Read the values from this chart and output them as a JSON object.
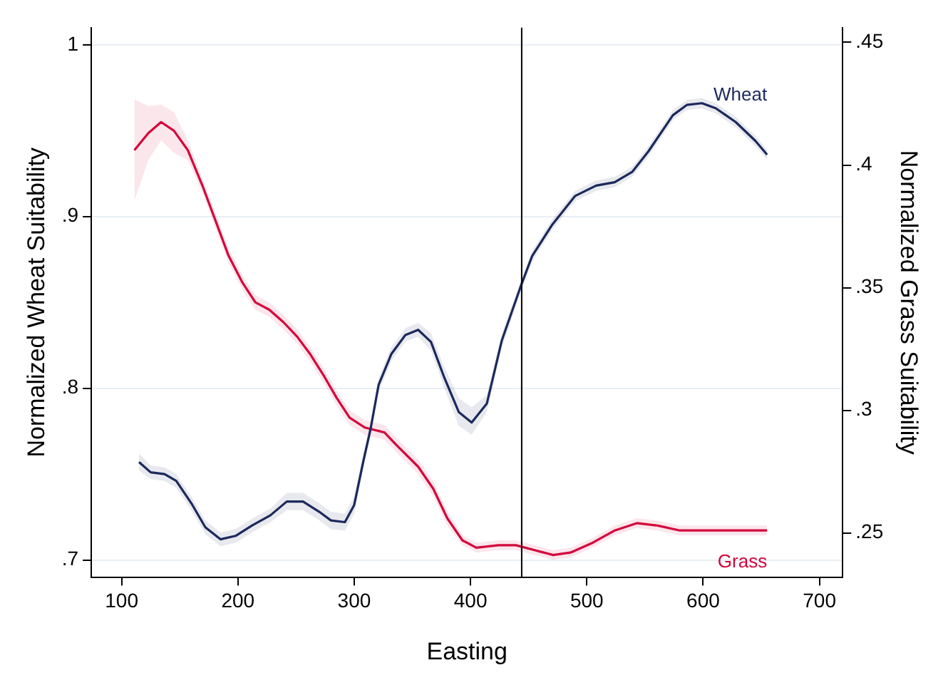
{
  "chart_data": {
    "type": "line",
    "xlabel": "Easting",
    "ylabel": "Normalized Wheat Suitability",
    "y2label": "Normalized Grass Suitability",
    "xlim": [
      74,
      720
    ],
    "xticks": [
      100,
      200,
      300,
      400,
      500,
      600,
      700
    ],
    "ylim": [
      0.69,
      1.01
    ],
    "yticks": [
      {
        "value": 0.7,
        "label": ".7"
      },
      {
        "value": 0.8,
        "label": ".8"
      },
      {
        "value": 0.9,
        "label": ".9"
      },
      1
    ],
    "y2lim": [
      0.232,
      0.456
    ],
    "y2ticks": [
      {
        "value": 0.25,
        "label": ".25"
      },
      {
        "value": 0.3,
        "label": ".3"
      },
      {
        "value": 0.35,
        "label": ".35"
      },
      {
        "value": 0.4,
        "label": ".4"
      },
      {
        "value": 0.45,
        "label": ".45"
      }
    ],
    "grid": "y",
    "legend": false,
    "marker": "none",
    "line_style": "solid",
    "ref_lines": [
      {
        "axis": "x",
        "value": 444,
        "color": "#000000"
      }
    ],
    "series": [
      {
        "name": "Wheat",
        "color": "#1b2a5c",
        "x": [
          115,
          125,
          137,
          147,
          160,
          172,
          185,
          198,
          212,
          228,
          242,
          256,
          270,
          280,
          292,
          300,
          308,
          314,
          321,
          332,
          344,
          355,
          366,
          377,
          390,
          401,
          414,
          427,
          443,
          453,
          470,
          490,
          508,
          524,
          539,
          553,
          574,
          586,
          599,
          611,
          628,
          645,
          655
        ],
        "values": [
          0.757,
          0.751,
          0.75,
          0.746,
          0.733,
          0.719,
          0.712,
          0.714,
          0.72,
          0.726,
          0.734,
          0.734,
          0.728,
          0.723,
          0.722,
          0.732,
          0.758,
          0.776,
          0.802,
          0.82,
          0.831,
          0.834,
          0.827,
          0.807,
          0.786,
          0.78,
          0.791,
          0.828,
          0.859,
          0.877,
          0.895,
          0.912,
          0.918,
          0.92,
          0.926,
          0.938,
          0.959,
          0.965,
          0.966,
          0.963,
          0.955,
          0.944,
          0.936
        ],
        "lower": [
          0.752,
          0.747,
          0.746,
          0.742,
          0.729,
          0.715,
          0.708,
          0.71,
          0.716,
          0.722,
          0.729,
          0.729,
          0.723,
          0.718,
          0.717,
          0.727,
          0.754,
          0.772,
          0.798,
          0.816,
          0.827,
          0.83,
          0.822,
          0.801,
          0.778,
          0.773,
          0.786,
          0.824,
          0.856,
          0.874,
          0.892,
          0.909,
          0.915,
          0.917,
          0.923,
          0.935,
          0.956,
          0.962,
          0.963,
          0.96,
          0.952,
          0.941,
          0.933
        ],
        "upper": [
          0.762,
          0.755,
          0.754,
          0.75,
          0.737,
          0.723,
          0.716,
          0.718,
          0.724,
          0.73,
          0.739,
          0.739,
          0.733,
          0.728,
          0.727,
          0.737,
          0.762,
          0.78,
          0.806,
          0.824,
          0.835,
          0.838,
          0.832,
          0.813,
          0.794,
          0.789,
          0.796,
          0.832,
          0.862,
          0.88,
          0.898,
          0.915,
          0.921,
          0.923,
          0.929,
          0.941,
          0.962,
          0.968,
          0.969,
          0.966,
          0.958,
          0.947,
          0.939
        ]
      },
      {
        "name": "Grass",
        "color": "#d4063d",
        "axis": "y2",
        "x": [
          111,
          123,
          134,
          145,
          157,
          170,
          181,
          192,
          204,
          215,
          227,
          239,
          251,
          262,
          274,
          285,
          296,
          309,
          326,
          336,
          355,
          368,
          380,
          393,
          405,
          424,
          439,
          455,
          471,
          486,
          505,
          524,
          543,
          561,
          580,
          599,
          618,
          636,
          655
        ],
        "values": [
          0.406,
          0.413,
          0.4175,
          0.414,
          0.406,
          0.391,
          0.377,
          0.363,
          0.352,
          0.344,
          0.341,
          0.336,
          0.33,
          0.323,
          0.314,
          0.305,
          0.297,
          0.293,
          0.291,
          0.286,
          0.277,
          0.268,
          0.256,
          0.247,
          0.244,
          0.245,
          0.245,
          0.243,
          0.241,
          0.242,
          0.246,
          0.251,
          0.254,
          0.253,
          0.251,
          0.251,
          0.251,
          0.251,
          0.251
        ],
        "lower": [
          0.3855,
          0.402,
          0.41,
          0.405,
          0.402,
          0.388,
          0.374,
          0.36,
          0.349,
          0.341,
          0.338,
          0.333,
          0.327,
          0.32,
          0.311,
          0.302,
          0.294,
          0.29,
          0.288,
          0.283,
          0.274,
          0.265,
          0.253,
          0.245,
          0.242,
          0.243,
          0.243,
          0.241,
          0.239,
          0.24,
          0.244,
          0.249,
          0.252,
          0.251,
          0.249,
          0.249,
          0.249,
          0.249,
          0.249
        ],
        "upper": [
          0.4268,
          0.424,
          0.4246,
          0.4215,
          0.41,
          0.394,
          0.38,
          0.366,
          0.355,
          0.347,
          0.344,
          0.339,
          0.333,
          0.326,
          0.317,
          0.308,
          0.3,
          0.296,
          0.294,
          0.289,
          0.28,
          0.271,
          0.259,
          0.249,
          0.246,
          0.247,
          0.247,
          0.245,
          0.243,
          0.244,
          0.248,
          0.253,
          0.256,
          0.255,
          0.253,
          0.253,
          0.253,
          0.253,
          0.253
        ]
      }
    ]
  }
}
